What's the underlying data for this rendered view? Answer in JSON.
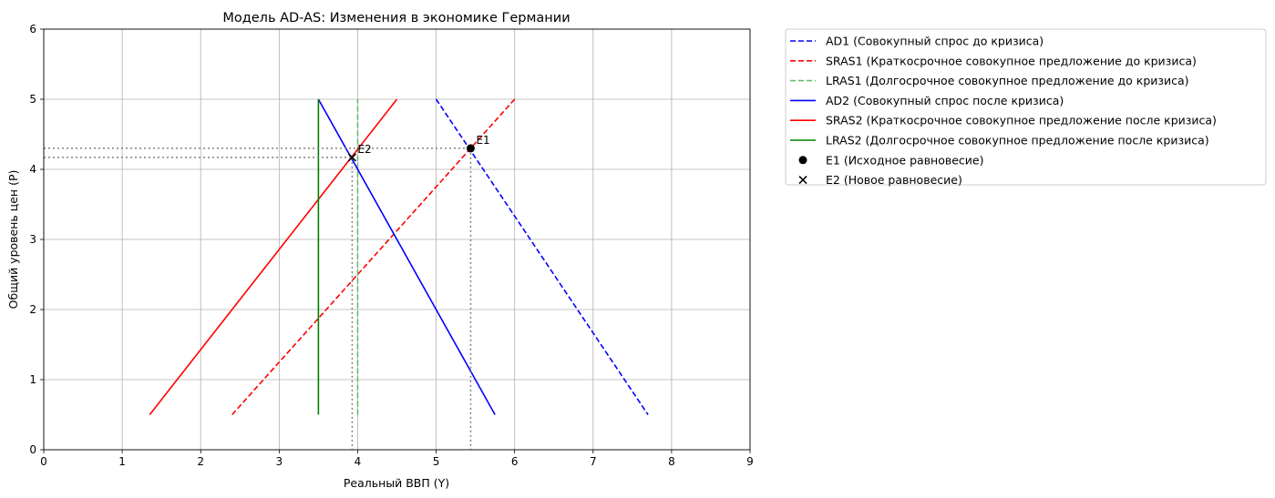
{
  "chart_data": {
    "type": "line",
    "title": "Модель AD-AS: Изменения в экономике Германии",
    "xlabel": "Реальный ВВП (Y)",
    "ylabel": "Общий уровень цен (P)",
    "xlim": [
      0,
      9
    ],
    "ylim": [
      0,
      6
    ],
    "xticks": [
      0,
      1,
      2,
      3,
      4,
      5,
      6,
      7,
      8,
      9
    ],
    "yticks": [
      0,
      1,
      2,
      3,
      4,
      5,
      6
    ],
    "grid": true,
    "legend_position": "outside-right-top",
    "series": [
      {
        "name": "AD1 (Совокупный спрос до кризиса)",
        "color": "#0000ff",
        "style": "dashed",
        "x": [
          5.0,
          7.7
        ],
        "y": [
          5.0,
          0.5
        ]
      },
      {
        "name": "SRAS1 (Краткосрочное совокупное предложение до кризиса)",
        "color": "#ff0000",
        "style": "dashed",
        "x": [
          2.4,
          6.0
        ],
        "y": [
          0.5,
          5.0
        ]
      },
      {
        "name": "LRAS1 (Долгосрочное совокупное предложение до кризиса)",
        "color": "#66bb66",
        "style": "dashed",
        "x": [
          4.0,
          4.0
        ],
        "y": [
          0.5,
          5.0
        ]
      },
      {
        "name": "AD2 (Совокупный спрос после кризиса)",
        "color": "#0000ff",
        "style": "solid",
        "x": [
          3.5,
          5.75
        ],
        "y": [
          5.0,
          0.5
        ]
      },
      {
        "name": "SRAS2 (Краткосрочное совокупное предложение после кризиса)",
        "color": "#ff0000",
        "style": "solid",
        "x": [
          1.35,
          4.5
        ],
        "y": [
          0.5,
          5.0
        ]
      },
      {
        "name": "LRAS2 (Долгосрочное совокупное предложение после кризиса)",
        "color": "#008000",
        "style": "solid",
        "x": [
          3.5,
          3.5
        ],
        "y": [
          0.5,
          5.0
        ]
      }
    ],
    "points": [
      {
        "name": "E1 (Исходное равновесие)",
        "label": "E1",
        "marker": "circle",
        "x": 5.44,
        "y": 4.3
      },
      {
        "name": "E2 (Новое равновесие)",
        "label": "E2",
        "marker": "x",
        "x": 3.93,
        "y": 4.17
      }
    ]
  }
}
